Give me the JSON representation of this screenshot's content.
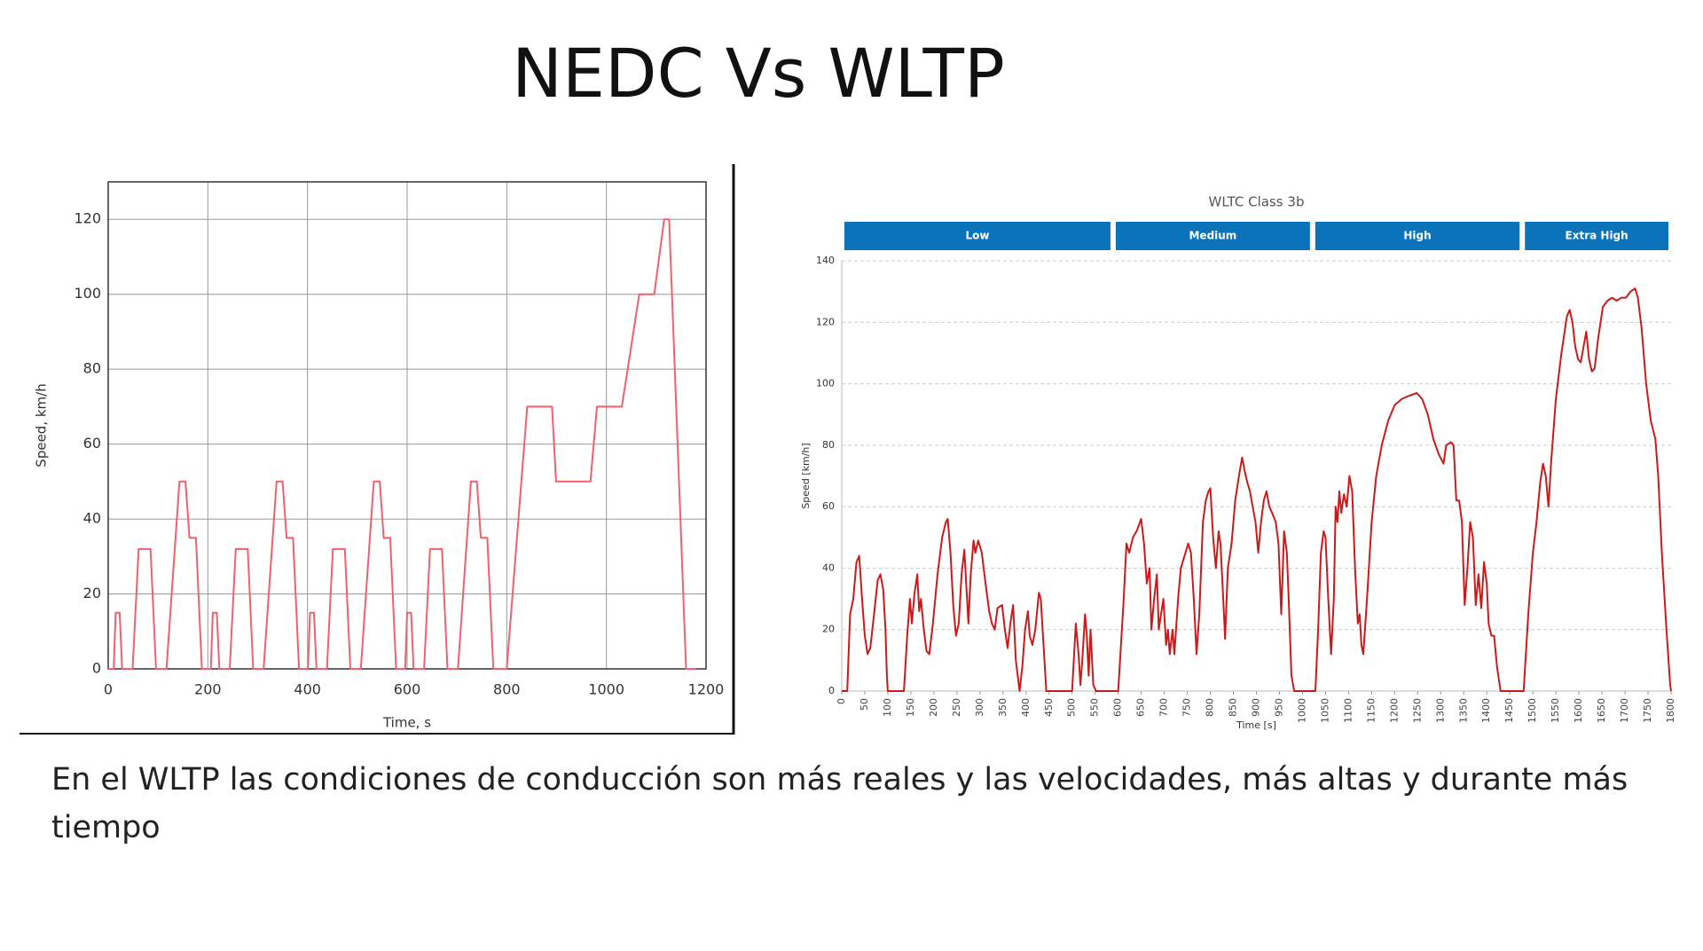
{
  "title": "NEDC Vs WLTP",
  "caption": "En el WLTP las condiciones de conducción son más reales y las velocidades, más altas y durante más tiempo",
  "chart_data": [
    {
      "type": "line",
      "x_label": "Time, s",
      "y_label": "Speed, km/h",
      "color": "#f0606e",
      "grid": "both",
      "xlim": [
        0,
        1200
      ],
      "ylim": [
        0,
        130
      ],
      "xticks": [
        0,
        200,
        400,
        600,
        800,
        1000,
        1200
      ],
      "yticks": [
        0,
        20,
        40,
        60,
        80,
        100,
        120
      ],
      "x": [
        0,
        11,
        15,
        23,
        28,
        49,
        61,
        85,
        96,
        117,
        143,
        155,
        163,
        176,
        188,
        195,
        206,
        210,
        218,
        223,
        244,
        256,
        280,
        291,
        312,
        338,
        350,
        358,
        371,
        383,
        390,
        401,
        405,
        413,
        418,
        439,
        451,
        475,
        486,
        507,
        533,
        545,
        553,
        566,
        578,
        585,
        596,
        600,
        608,
        613,
        634,
        646,
        670,
        681,
        702,
        728,
        740,
        748,
        761,
        773,
        800,
        841,
        891,
        899,
        968,
        981,
        1031,
        1066,
        1096,
        1116,
        1126,
        1160,
        1180
      ],
      "values": [
        0,
        0,
        15,
        15,
        0,
        0,
        32,
        32,
        0,
        0,
        50,
        50,
        35,
        35,
        0,
        0,
        0,
        15,
        15,
        0,
        0,
        32,
        32,
        0,
        0,
        50,
        50,
        35,
        35,
        0,
        0,
        0,
        15,
        15,
        0,
        0,
        32,
        32,
        0,
        0,
        50,
        50,
        35,
        35,
        0,
        0,
        0,
        15,
        15,
        0,
        0,
        32,
        32,
        0,
        0,
        50,
        50,
        35,
        35,
        0,
        0,
        70,
        70,
        50,
        50,
        70,
        70,
        100,
        100,
        120,
        120,
        0,
        0
      ]
    },
    {
      "type": "line",
      "title": "WLTC Class 3b",
      "x_label": "Time [s]",
      "y_label": "Speed [km/h]",
      "color": "#cc1a1a",
      "grid": "y",
      "xlim": [
        0,
        1800
      ],
      "ylim": [
        0,
        140
      ],
      "xticks": [
        0,
        50,
        100,
        150,
        200,
        250,
        300,
        350,
        400,
        450,
        500,
        550,
        600,
        650,
        700,
        750,
        800,
        850,
        900,
        950,
        1000,
        1050,
        1100,
        1150,
        1200,
        1250,
        1300,
        1350,
        1400,
        1450,
        1500,
        1550,
        1600,
        1650,
        1700,
        1750,
        1800
      ],
      "yticks": [
        0,
        20,
        40,
        60,
        80,
        100,
        120,
        140
      ],
      "phases": [
        {
          "label": "Low",
          "start": 0,
          "end": 589
        },
        {
          "label": "Medium",
          "start": 589,
          "end": 1022
        },
        {
          "label": "High",
          "start": 1022,
          "end": 1477
        },
        {
          "label": "Extra High",
          "start": 1477,
          "end": 1800
        }
      ],
      "x": [
        0,
        12,
        18,
        25,
        32,
        38,
        44,
        50,
        56,
        62,
        70,
        78,
        84,
        90,
        95,
        98,
        100,
        135,
        142,
        148,
        152,
        158,
        164,
        168,
        172,
        178,
        184,
        190,
        198,
        208,
        218,
        226,
        230,
        236,
        242,
        248,
        254,
        260,
        266,
        270,
        275,
        280,
        286,
        290,
        296,
        304,
        312,
        320,
        326,
        332,
        338,
        348,
        354,
        360,
        366,
        372,
        378,
        386,
        392,
        398,
        404,
        408,
        414,
        420,
        428,
        432,
        438,
        444,
        500,
        508,
        514,
        518,
        522,
        528,
        532,
        536,
        540,
        546,
        552,
        600,
        612,
        618,
        624,
        632,
        640,
        650,
        656,
        662,
        668,
        672,
        678,
        684,
        688,
        694,
        698,
        704,
        708,
        712,
        718,
        722,
        730,
        736,
        744,
        752,
        758,
        764,
        770,
        776,
        784,
        790,
        796,
        800,
        806,
        812,
        818,
        822,
        828,
        832,
        838,
        846,
        854,
        862,
        869,
        874,
        880,
        886,
        892,
        898,
        904,
        910,
        916,
        922,
        928,
        934,
        942,
        948,
        954,
        960,
        966,
        970,
        976,
        982,
        1028,
        1034,
        1040,
        1046,
        1050,
        1056,
        1062,
        1068,
        1072,
        1076,
        1080,
        1084,
        1090,
        1096,
        1102,
        1108,
        1114,
        1120,
        1124,
        1128,
        1132,
        1140,
        1150,
        1160,
        1172,
        1186,
        1200,
        1215,
        1230,
        1248,
        1260,
        1272,
        1284,
        1296,
        1306,
        1312,
        1322,
        1328,
        1334,
        1340,
        1346,
        1352,
        1358,
        1364,
        1370,
        1376,
        1382,
        1388,
        1394,
        1400,
        1404,
        1410,
        1416,
        1422,
        1430,
        1480,
        1490,
        1500,
        1508,
        1516,
        1522,
        1528,
        1534,
        1540,
        1550,
        1562,
        1574,
        1580,
        1586,
        1592,
        1598,
        1604,
        1610,
        1616,
        1622,
        1628,
        1634,
        1642,
        1652,
        1662,
        1672,
        1682,
        1692,
        1702,
        1712,
        1722,
        1728,
        1736,
        1746,
        1756,
        1766,
        1772,
        1780,
        1790,
        1798,
        1800
      ],
      "values": [
        0,
        0,
        25,
        30,
        42,
        44,
        30,
        18,
        12,
        14,
        25,
        36,
        38,
        33,
        20,
        5,
        0,
        0,
        18,
        30,
        22,
        32,
        38,
        26,
        30,
        20,
        13,
        12,
        22,
        38,
        50,
        55,
        56,
        45,
        28,
        18,
        22,
        38,
        46,
        35,
        22,
        38,
        49,
        45,
        49,
        45,
        35,
        26,
        22,
        20,
        27,
        28,
        20,
        14,
        22,
        28,
        10,
        0,
        8,
        20,
        26,
        18,
        15,
        20,
        32,
        30,
        15,
        0,
        0,
        22,
        12,
        2,
        10,
        25,
        18,
        5,
        20,
        2,
        0,
        0,
        30,
        48,
        45,
        50,
        52,
        56,
        48,
        35,
        40,
        20,
        30,
        38,
        20,
        26,
        30,
        15,
        20,
        12,
        20,
        12,
        30,
        40,
        44,
        48,
        45,
        30,
        12,
        25,
        55,
        62,
        65,
        66,
        50,
        40,
        52,
        48,
        30,
        17,
        40,
        48,
        62,
        70,
        76,
        72,
        68,
        65,
        60,
        55,
        45,
        55,
        62,
        65,
        60,
        58,
        55,
        48,
        25,
        52,
        45,
        30,
        5,
        0,
        0,
        20,
        45,
        52,
        50,
        30,
        12,
        30,
        60,
        55,
        65,
        58,
        64,
        60,
        70,
        65,
        40,
        22,
        25,
        15,
        12,
        30,
        55,
        70,
        80,
        88,
        93,
        95,
        96,
        97,
        95,
        90,
        82,
        77,
        74,
        80,
        81,
        80,
        62,
        62,
        55,
        28,
        40,
        55,
        50,
        28,
        38,
        27,
        42,
        35,
        22,
        18,
        18,
        8,
        0,
        0,
        25,
        45,
        55,
        68,
        74,
        70,
        60,
        75,
        95,
        110,
        122,
        124,
        120,
        112,
        108,
        107,
        112,
        117,
        108,
        104,
        105,
        115,
        125,
        127,
        128,
        127,
        128,
        128,
        130,
        131,
        128,
        118,
        100,
        88,
        82,
        70,
        45,
        20,
        2,
        0
      ]
    }
  ]
}
